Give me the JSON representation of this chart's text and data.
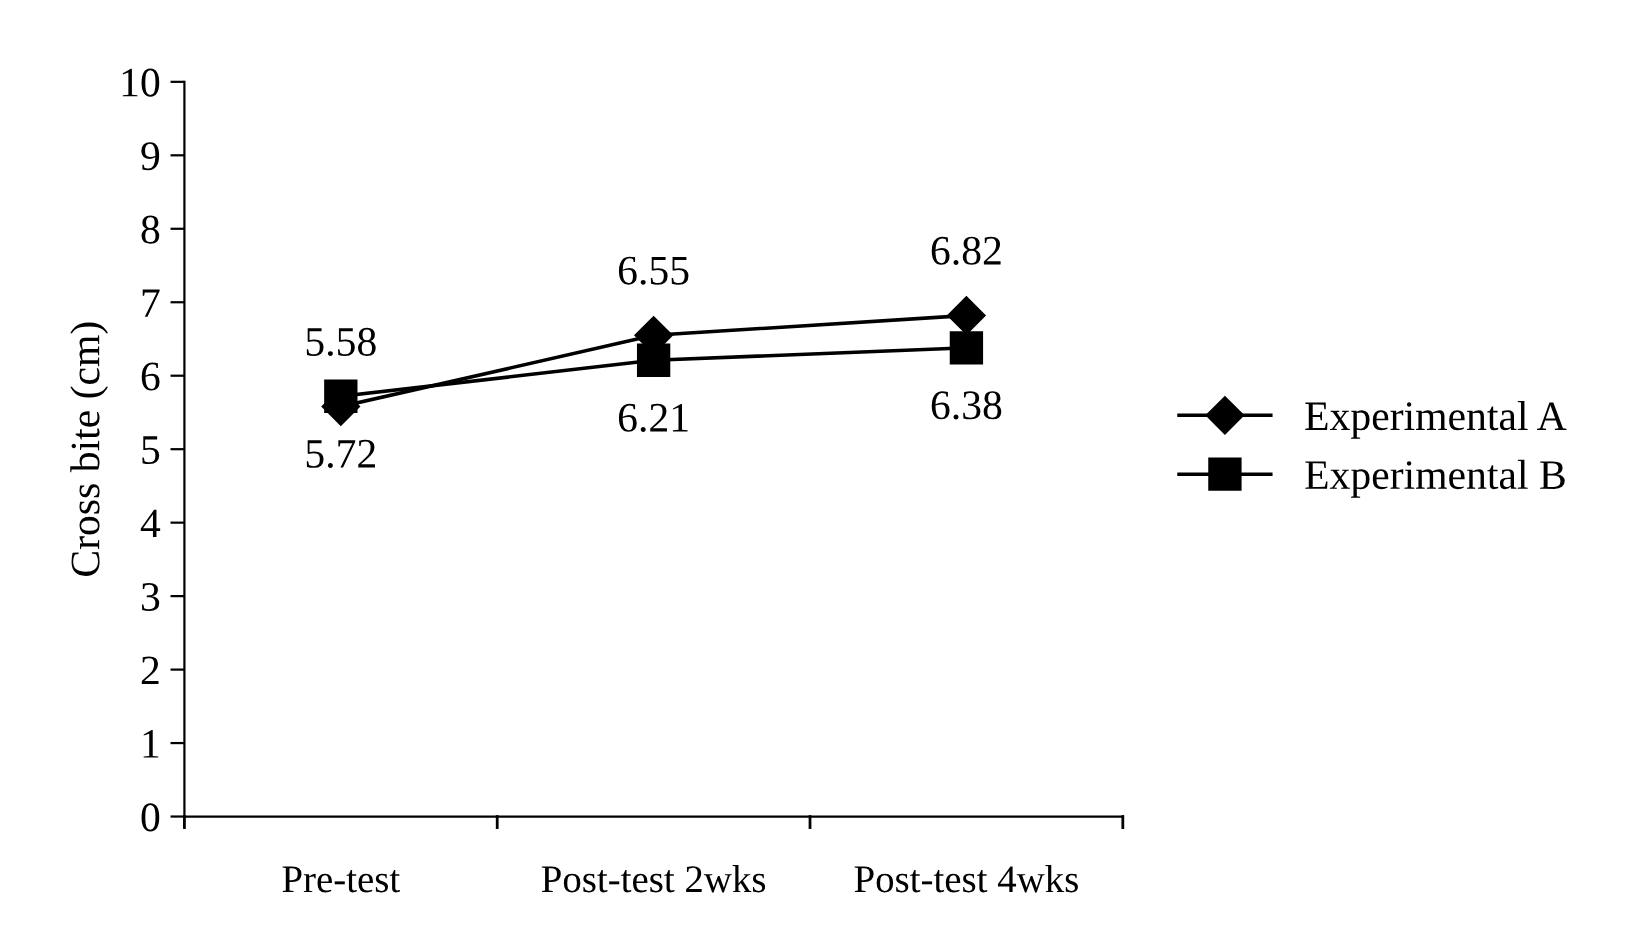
{
  "chart_data": {
    "type": "line",
    "ylabel": "Cross bite (cm)",
    "categories": [
      "Pre-test",
      "Post-test 2wks",
      "Post-test 4wks"
    ],
    "series": [
      {
        "name": "Experimental A",
        "color": "#000000",
        "marker": "diamond",
        "values": [
          5.58,
          6.55,
          6.82
        ],
        "value_labels": [
          "5.58",
          "6.55",
          "6.82"
        ]
      },
      {
        "name": "Experimental B",
        "color": "#000000",
        "marker": "square",
        "values": [
          5.72,
          6.21,
          6.38
        ],
        "value_labels": [
          "5.72",
          "6.21",
          "6.38"
        ]
      }
    ],
    "ylim": [
      0,
      10
    ],
    "yticks": [
      0,
      1,
      2,
      3,
      4,
      5,
      6,
      7,
      8,
      9,
      10
    ],
    "grid": false,
    "legend": "right",
    "line_style": "solid"
  }
}
